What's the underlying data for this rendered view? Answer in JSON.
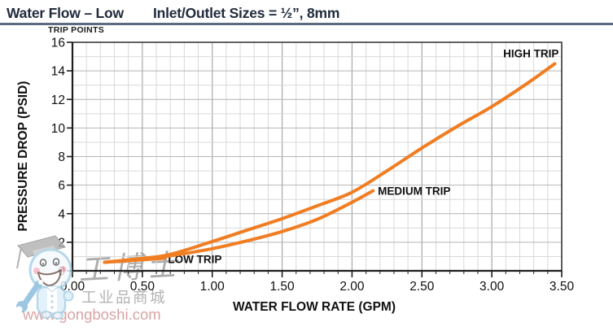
{
  "header": {
    "title_left": "Water Flow – Low",
    "title_right": "Inlet/Outlet Sizes = ½”, 8mm"
  },
  "watermark": {
    "brand_cn": "工博士",
    "tagline_cn": "工业品商城",
    "url": "www.gongboshi.com"
  },
  "colors": {
    "curve_orange": "#F07D22",
    "title_navy": "#222C3D",
    "rule_slate": "#5C6C80",
    "grid_minor": "#D9D9D9",
    "grid_major": "#A8A8A8",
    "axis_dark": "#1E1E1E",
    "watermark_gray": "#ACACAC",
    "watermark_pink": "#D8A4A4"
  },
  "chart_data": {
    "type": "line",
    "title": "Water Flow – Low",
    "top_label": "TRIP POINTS",
    "xlabel": "WATER FLOW RATE (GPM)",
    "ylabel": "PRESSURE DROP (PSID)",
    "xlim": [
      0,
      3.5
    ],
    "ylim": [
      0,
      16
    ],
    "x_tick_labels": [
      "0.00",
      "0.50",
      "1.00",
      "1.50",
      "2.00",
      "2.50",
      "3.00",
      "3.50"
    ],
    "y_tick_labels": [
      "0",
      "2",
      "4",
      "6",
      "8",
      "10",
      "12",
      "14",
      "16"
    ],
    "x_major_step": 0.5,
    "x_minor_step": 0.1,
    "y_major_step": 2,
    "y_minor_step": 1,
    "grid": true,
    "legend_position": "inline-labels",
    "series": [
      {
        "name": "low_trip",
        "label": "LOW TRIP",
        "points": [
          [
            0.23,
            0.6
          ],
          [
            0.45,
            0.74
          ],
          [
            0.66,
            0.88
          ]
        ],
        "label_anchor": "start",
        "label_dx": 4,
        "label_dy": 6
      },
      {
        "name": "medium_trip",
        "label": "MEDIUM TRIP",
        "points": [
          [
            0.23,
            0.6
          ],
          [
            0.5,
            0.84
          ],
          [
            0.7,
            1.05
          ],
          [
            1.0,
            1.55
          ],
          [
            1.25,
            2.1
          ],
          [
            1.5,
            2.75
          ],
          [
            1.75,
            3.6
          ],
          [
            2.0,
            4.8
          ],
          [
            2.15,
            5.6
          ]
        ],
        "label_anchor": "start",
        "label_dx": 6,
        "label_dy": 5
      },
      {
        "name": "high_trip",
        "label": "HIGH TRIP",
        "points": [
          [
            0.23,
            0.6
          ],
          [
            0.5,
            0.87
          ],
          [
            0.7,
            1.15
          ],
          [
            1.0,
            2.05
          ],
          [
            1.25,
            2.85
          ],
          [
            1.5,
            3.65
          ],
          [
            1.75,
            4.55
          ],
          [
            2.0,
            5.5
          ],
          [
            2.25,
            7.0
          ],
          [
            2.5,
            8.6
          ],
          [
            2.75,
            10.1
          ],
          [
            3.0,
            11.5
          ],
          [
            3.25,
            13.1
          ],
          [
            3.45,
            14.5
          ]
        ],
        "label_anchor": "end",
        "label_dx": 5,
        "label_dy": -8
      }
    ]
  }
}
